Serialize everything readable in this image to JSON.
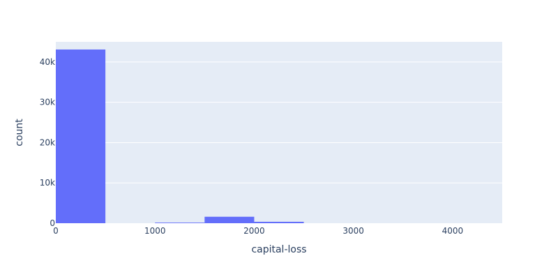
{
  "chart_data": {
    "type": "bar",
    "subtype": "histogram",
    "xlabel": "capital-loss",
    "ylabel": "count",
    "xlim": [
      0,
      4500
    ],
    "ylim": [
      0,
      45000
    ],
    "grid": true,
    "bin_width": 500,
    "bins": [
      {
        "x0": 0,
        "x1": 500,
        "count": 43100
      },
      {
        "x0": 1000,
        "x1": 1500,
        "count": 150
      },
      {
        "x0": 1500,
        "x1": 2000,
        "count": 1600
      },
      {
        "x0": 2000,
        "x1": 2500,
        "count": 350
      }
    ],
    "x_ticks": [
      {
        "value": 0,
        "label": "0"
      },
      {
        "value": 1000,
        "label": "1000"
      },
      {
        "value": 2000,
        "label": "2000"
      },
      {
        "value": 3000,
        "label": "3000"
      },
      {
        "value": 4000,
        "label": "4000"
      }
    ],
    "y_ticks": [
      {
        "value": 0,
        "label": "0"
      },
      {
        "value": 10000,
        "label": "10k"
      },
      {
        "value": 20000,
        "label": "20k"
      },
      {
        "value": 30000,
        "label": "30k"
      },
      {
        "value": 40000,
        "label": "40k"
      }
    ],
    "colors": {
      "bar": "#636efa",
      "plot_bg": "#e5ecf6",
      "grid": "#ffffff",
      "text": "#2a3f5f"
    }
  }
}
